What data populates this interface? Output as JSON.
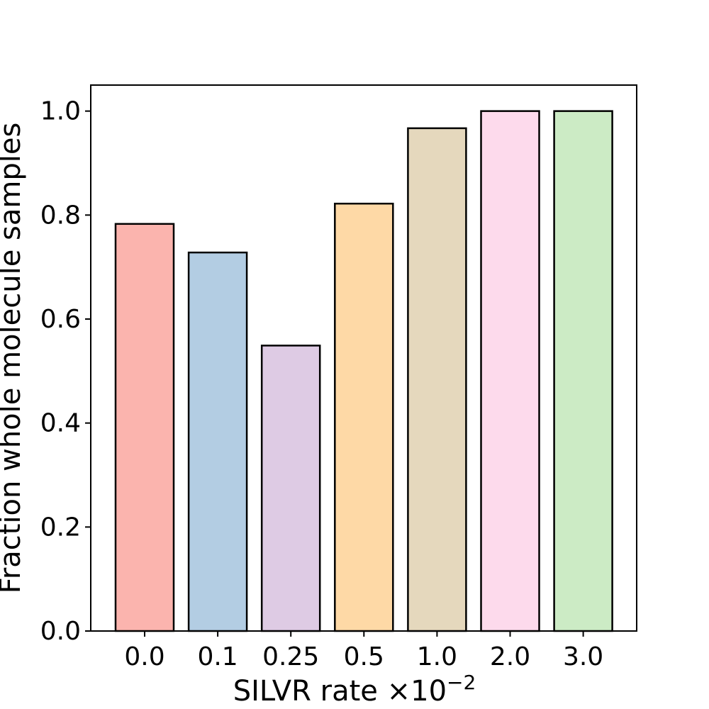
{
  "chart_data": {
    "type": "bar",
    "title": "",
    "xlabel": "SILVR rate ×10",
    "xlabel_exponent": "−2",
    "ylabel": "Fraction whole molecule samples",
    "categories": [
      "0.0",
      "0.1",
      "0.25",
      "0.5",
      "1.0",
      "2.0",
      "3.0"
    ],
    "values": [
      0.783,
      0.728,
      0.549,
      0.822,
      0.967,
      1.0,
      1.0
    ],
    "colors": [
      "#fbb4ae",
      "#b3cde3",
      "#decbe4",
      "#fed9a6",
      "#e5d8bd",
      "#fddaec",
      "#ccebc5"
    ],
    "ylim": [
      0,
      1.05
    ],
    "yticks": [
      0.0,
      0.2,
      0.4,
      0.6,
      0.8,
      1.0
    ],
    "ytick_labels": [
      "0.0",
      "0.2",
      "0.4",
      "0.6",
      "0.8",
      "1.0"
    ],
    "grid": false
  }
}
